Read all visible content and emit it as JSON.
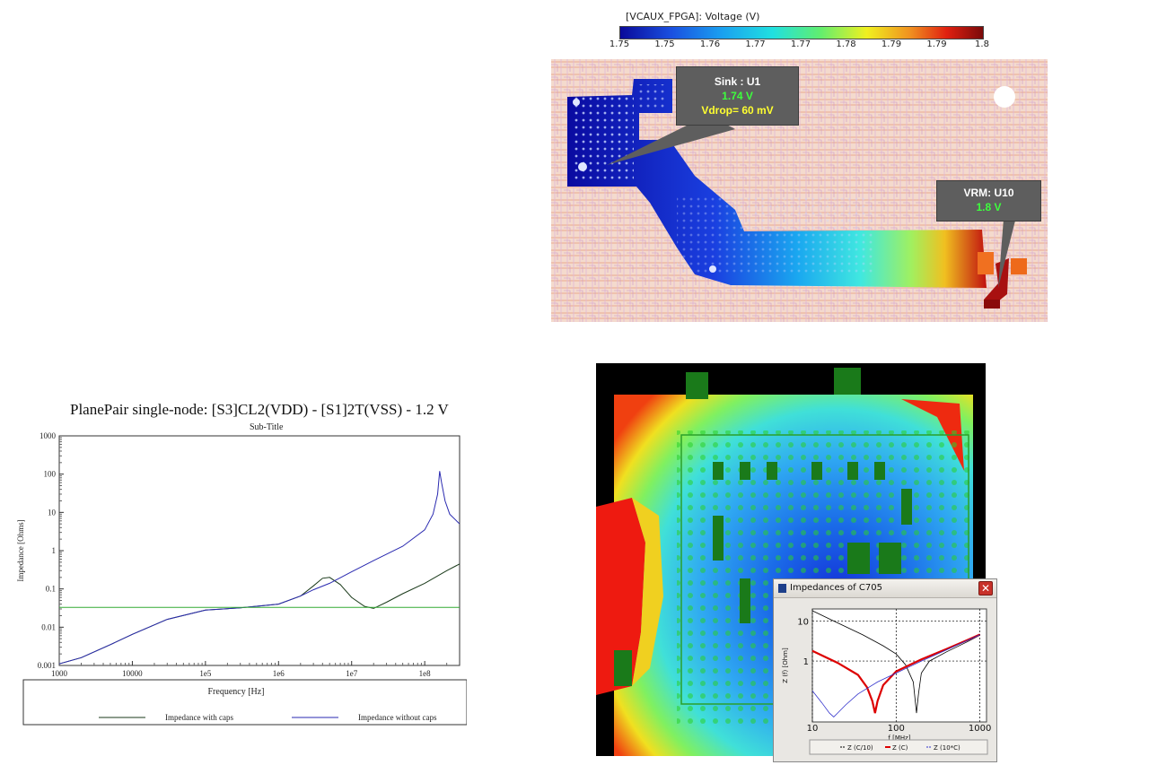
{
  "colorbar": {
    "title": "[VCAUX_FPGA]: Voltage (V)",
    "ticks": [
      "1.75",
      "1.75",
      "1.76",
      "1.77",
      "1.77",
      "1.78",
      "1.79",
      "1.79",
      "1.8"
    ],
    "colors": [
      "#0a0a9a",
      "#1a4fe0",
      "#1aa0f0",
      "#20e0e0",
      "#60ee70",
      "#f0f020",
      "#f09020",
      "#e02010",
      "#7a0a0a"
    ]
  },
  "voltage_map": {
    "sink": {
      "title": "Sink : U1",
      "voltage": "1.74 V",
      "vdrop": "Vdrop= 60 mV"
    },
    "vrm": {
      "title": "VRM: U10",
      "voltage": "1.8 V"
    }
  },
  "plane_pair": {
    "title": "PlanePair single-node: [S3]CL2(VDD) - [S1]2T(VSS) - 1.2 V",
    "subtitle": "Sub-Title"
  },
  "impedance_dialog": {
    "title": "Impedances of C705",
    "close_label": "✕"
  },
  "chart_data": [
    {
      "id": "planepair",
      "type": "line",
      "title": "PlanePair single-node: [S3]CL2(VDD) - [S1]2T(VSS) - 1.2 V",
      "subtitle": "Sub-Title",
      "xlabel": "Frequency [Hz]",
      "ylabel": "Impedance [Ohms]",
      "xscale": "log",
      "yscale": "log",
      "xlim": [
        1000,
        300000000
      ],
      "ylim": [
        0.001,
        1000
      ],
      "xticks": [
        1000,
        10000,
        100000,
        1000000,
        10000000,
        100000000
      ],
      "xtick_labels": [
        "1000",
        "10000",
        "1e5",
        "1e6",
        "1e7",
        "1e8"
      ],
      "yticks": [
        0.001,
        0.01,
        0.1,
        1,
        10,
        100,
        1000
      ],
      "ytick_labels": [
        "0.001",
        "0.01",
        "0.1",
        "1",
        "10",
        "100",
        "1000"
      ],
      "grid": false,
      "legend_position": "bottom",
      "series": [
        {
          "name": "Impedance with caps",
          "color": "#1a3a1a",
          "x": [
            1000,
            2000,
            5000,
            10000,
            30000,
            100000,
            300000,
            1000000,
            2000000,
            3000000,
            4000000,
            5000000,
            7000000,
            10000000,
            15000000,
            20000000,
            30000000,
            50000000,
            100000000,
            200000000,
            300000000
          ],
          "y": [
            0.0011,
            0.0016,
            0.0035,
            0.0065,
            0.016,
            0.028,
            0.032,
            0.04,
            0.065,
            0.12,
            0.19,
            0.2,
            0.13,
            0.06,
            0.035,
            0.031,
            0.045,
            0.075,
            0.14,
            0.3,
            0.45
          ]
        },
        {
          "name": "Impedance without caps",
          "color": "#2a2ab0",
          "x": [
            1000,
            2000,
            5000,
            10000,
            30000,
            100000,
            300000,
            1000000,
            2000000,
            3000000,
            5000000,
            10000000,
            20000000,
            50000000,
            100000000,
            130000000,
            150000000,
            160000000,
            170000000,
            190000000,
            220000000,
            300000000
          ],
          "y": [
            0.0011,
            0.0016,
            0.0035,
            0.0065,
            0.016,
            0.028,
            0.032,
            0.04,
            0.065,
            0.095,
            0.14,
            0.28,
            0.55,
            1.3,
            3.5,
            9,
            30,
            120,
            60,
            20,
            9,
            5
          ]
        },
        {
          "name": "",
          "color": "#33aa33",
          "x": [
            1000,
            300000000
          ],
          "y": [
            0.033,
            0.033
          ]
        }
      ]
    },
    {
      "id": "c705",
      "type": "line",
      "xlabel": "f [MHz]",
      "ylabel": "Z (f) [Ohm]",
      "xscale": "log",
      "yscale": "log",
      "xlim": [
        10,
        1200
      ],
      "ylim": [
        0.03,
        20
      ],
      "xticks": [
        10,
        100,
        1000
      ],
      "xtick_labels": [
        "10",
        "100",
        "1000"
      ],
      "yticks": [
        1,
        10
      ],
      "ytick_labels": [
        "1",
        "10"
      ],
      "grid": true,
      "legend_position": "bottom",
      "series": [
        {
          "name": "Z (C/10)",
          "color": "#000000",
          "x": [
            10,
            20,
            40,
            70,
            100,
            130,
            160,
            175,
            185,
            200,
            250,
            400,
            700,
            1000
          ],
          "y": [
            18,
            9,
            4.5,
            2.4,
            1.5,
            0.8,
            0.3,
            0.05,
            0.15,
            0.5,
            1.0,
            1.7,
            3.0,
            4.4
          ]
        },
        {
          "name": "Z (C)",
          "color": "#dd0000",
          "x": [
            10,
            20,
            35,
            45,
            52,
            56,
            60,
            70,
            100,
            200,
            400,
            700,
            1000
          ],
          "y": [
            1.8,
            0.9,
            0.45,
            0.22,
            0.1,
            0.05,
            0.1,
            0.25,
            0.55,
            1.1,
            2.0,
            3.3,
            4.6
          ]
        },
        {
          "name": "Z (10*C)",
          "color": "#3333cc",
          "x": [
            10,
            13,
            16,
            18,
            20,
            25,
            35,
            60,
            100,
            200,
            400,
            1000
          ],
          "y": [
            0.18,
            0.09,
            0.05,
            0.04,
            0.05,
            0.08,
            0.15,
            0.3,
            0.5,
            1.0,
            1.9,
            4.5
          ]
        }
      ]
    }
  ]
}
